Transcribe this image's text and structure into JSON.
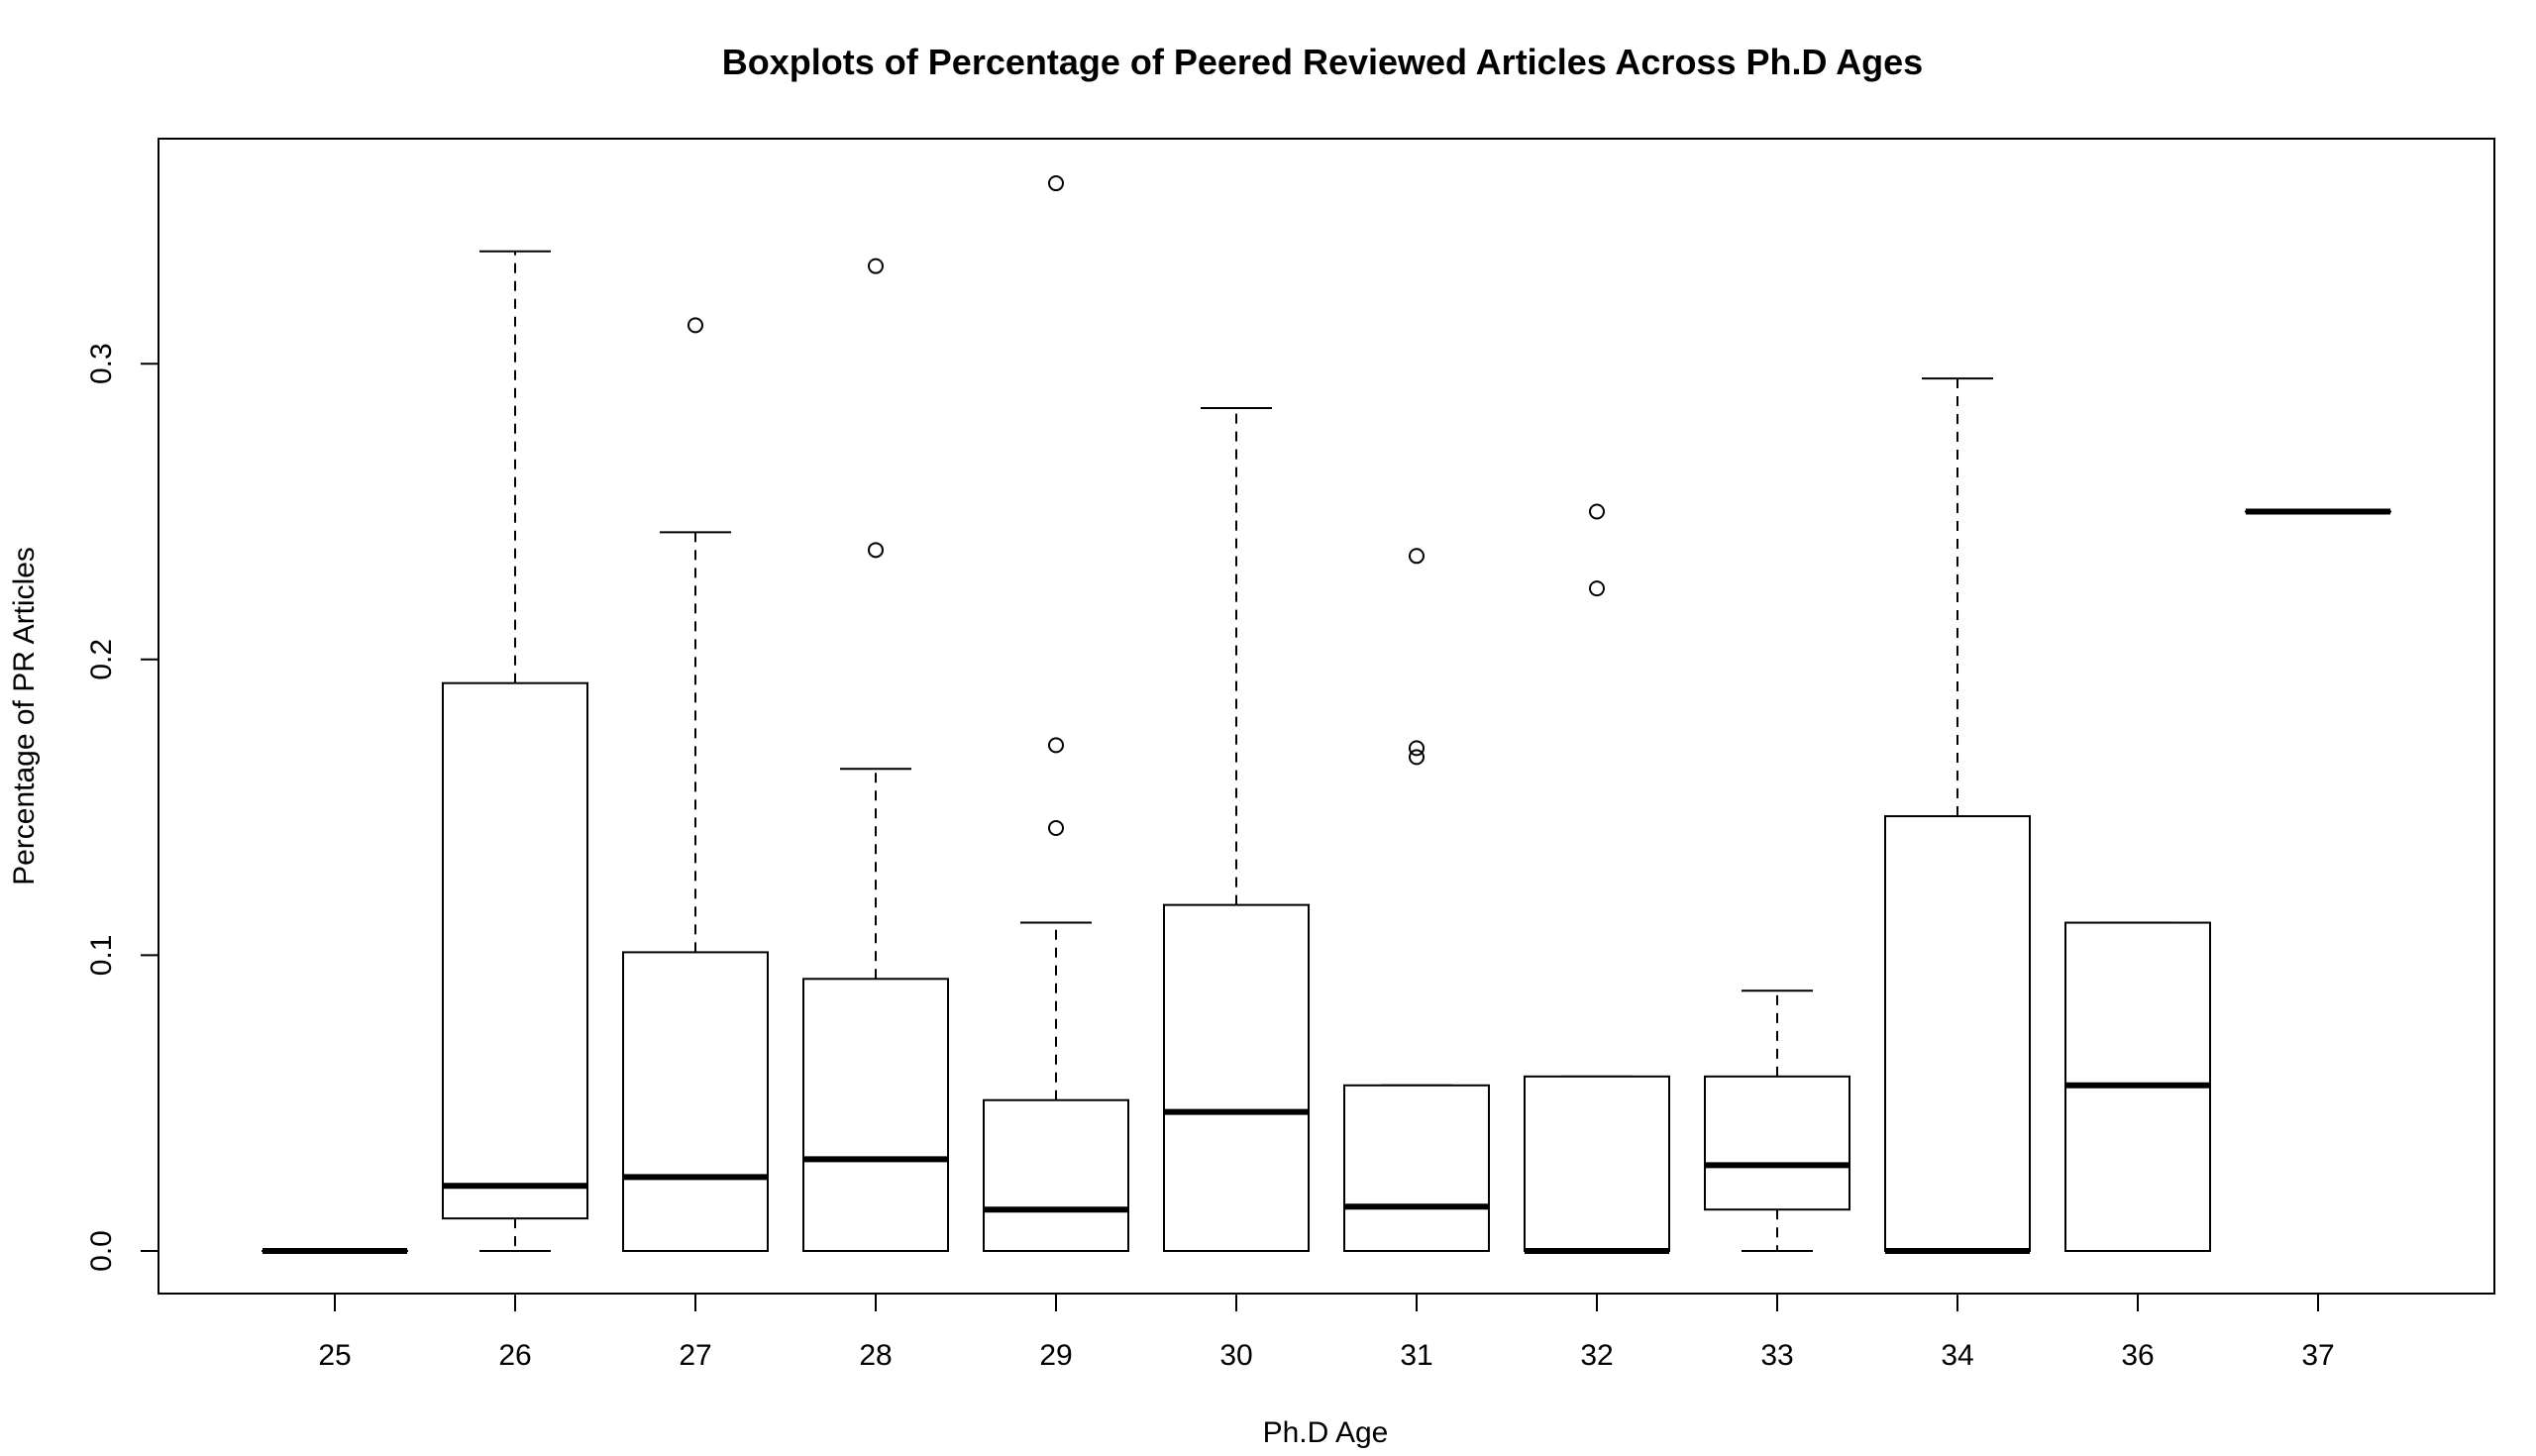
{
  "chart_data": {
    "type": "boxplot",
    "title": "Boxplots of Percentage of Peered Reviewed Articles Across Ph.D Ages",
    "xlabel": "Ph.D Age",
    "ylabel": "Percentage of PR Articles",
    "ylim": [
      -0.015,
      0.375
    ],
    "yticks": [
      0.0,
      0.1,
      0.2,
      0.3
    ],
    "ytick_labels": [
      "0.0",
      "0.1",
      "0.2",
      "0.3"
    ],
    "grid": false,
    "legend": "none",
    "categories": [
      "25",
      "26",
      "27",
      "28",
      "29",
      "30",
      "31",
      "32",
      "33",
      "34",
      "36",
      "37"
    ],
    "boxes": [
      {
        "label": "25",
        "whisker_low": 0.0,
        "q1": 0.0,
        "median": 0.0,
        "q3": 0.0,
        "whisker_high": 0.0,
        "outliers": []
      },
      {
        "label": "26",
        "whisker_low": 0.0,
        "q1": 0.011,
        "median": 0.022,
        "q3": 0.192,
        "whisker_high": 0.338,
        "outliers": []
      },
      {
        "label": "27",
        "whisker_low": 0.0,
        "q1": 0.0,
        "median": 0.025,
        "q3": 0.101,
        "whisker_high": 0.243,
        "outliers": [
          0.313
        ]
      },
      {
        "label": "28",
        "whisker_low": 0.0,
        "q1": 0.0,
        "median": 0.031,
        "q3": 0.092,
        "whisker_high": 0.163,
        "outliers": [
          0.237,
          0.333
        ]
      },
      {
        "label": "29",
        "whisker_low": 0.0,
        "q1": 0.0,
        "median": 0.014,
        "q3": 0.051,
        "whisker_high": 0.111,
        "outliers": [
          0.143,
          0.171,
          0.361
        ]
      },
      {
        "label": "30",
        "whisker_low": 0.0,
        "q1": 0.0,
        "median": 0.047,
        "q3": 0.117,
        "whisker_high": 0.285,
        "outliers": []
      },
      {
        "label": "31",
        "whisker_low": 0.0,
        "q1": 0.0,
        "median": 0.015,
        "q3": 0.056,
        "whisker_high": 0.056,
        "outliers": [
          0.167,
          0.17,
          0.235
        ]
      },
      {
        "label": "32",
        "whisker_low": 0.0,
        "q1": 0.0,
        "median": 0.0,
        "q3": 0.059,
        "whisker_high": 0.059,
        "outliers": [
          0.224,
          0.25
        ]
      },
      {
        "label": "33",
        "whisker_low": 0.0,
        "q1": 0.014,
        "median": 0.029,
        "q3": 0.059,
        "whisker_high": 0.088,
        "outliers": []
      },
      {
        "label": "34",
        "whisker_low": 0.0,
        "q1": 0.0,
        "median": 0.0,
        "q3": 0.147,
        "whisker_high": 0.295,
        "outliers": []
      },
      {
        "label": "36",
        "whisker_low": 0.0,
        "q1": 0.0,
        "median": 0.056,
        "q3": 0.111,
        "whisker_high": 0.111,
        "outliers": []
      },
      {
        "label": "37",
        "whisker_low": 0.25,
        "q1": 0.25,
        "median": 0.25,
        "q3": 0.25,
        "whisker_high": 0.25,
        "outliers": []
      }
    ]
  }
}
